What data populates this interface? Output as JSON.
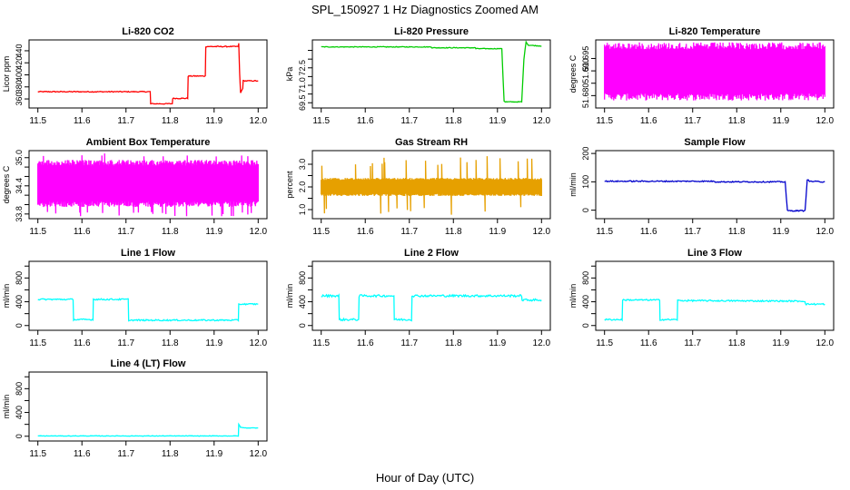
{
  "figure": {
    "title": "SPL_150927  1 Hz Diagnostics Zoomed AM",
    "xlabel": "Hour of Day (UTC)"
  },
  "chart_data": [
    {
      "type": "line",
      "title": "Li-820 CO2",
      "ylabel": "Licor ppm",
      "color": "#ff0000",
      "xlim": [
        11.48,
        12.02
      ],
      "ylim": [
        345,
        458
      ],
      "xticks": [
        11.5,
        11.6,
        11.7,
        11.8,
        11.9,
        12.0
      ],
      "xtick_labels": [
        "11.5",
        "11.6",
        "11.7",
        "11.8",
        "11.9",
        "12.0"
      ],
      "yticks": [
        360,
        380,
        400,
        420,
        440
      ],
      "ytick_labels": [
        "360",
        "380",
        "400",
        "420",
        "440"
      ],
      "noise": 0.8,
      "x": [
        11.5,
        11.755,
        11.756,
        11.805,
        11.806,
        11.84,
        11.841,
        11.88,
        11.881,
        11.955,
        11.956,
        11.958,
        11.96,
        11.965,
        11.966,
        12.0
      ],
      "y": [
        372,
        372,
        352,
        352,
        361,
        361,
        398,
        398,
        447,
        447,
        452,
        402,
        370,
        378,
        390,
        390
      ]
    },
    {
      "type": "line",
      "title": "Li-820 Pressure",
      "ylabel": "kPa",
      "color": "#00cc00",
      "xlim": [
        11.48,
        12.02
      ],
      "ylim": [
        69.2,
        73.1
      ],
      "xticks": [
        11.5,
        11.6,
        11.7,
        11.8,
        11.9,
        12.0
      ],
      "xtick_labels": [
        "11.5",
        "11.6",
        "11.7",
        "11.8",
        "11.9",
        "12.0"
      ],
      "yticks": [
        69.5,
        70.0,
        70.5,
        71.0,
        71.5,
        72.0,
        72.5
      ],
      "ytick_labels": [
        "69.5",
        "",
        "71.0",
        "",
        "72.5",
        "",
        ""
      ],
      "noise": 0.02,
      "x": [
        11.5,
        11.75,
        11.751,
        11.85,
        11.851,
        11.91,
        11.915,
        11.918,
        11.955,
        11.96,
        11.965,
        11.97,
        12.0
      ],
      "y": [
        72.7,
        72.7,
        72.65,
        72.65,
        72.6,
        72.6,
        69.6,
        69.55,
        69.55,
        72.0,
        73.0,
        72.8,
        72.75
      ]
    },
    {
      "type": "line",
      "title": "Li-820 Temperature",
      "ylabel": "degrees C",
      "color": "#ff00ff",
      "xlim": [
        11.48,
        12.02
      ],
      "ylim": [
        51.675,
        51.7025
      ],
      "xticks": [
        11.5,
        11.6,
        11.7,
        11.8,
        11.9,
        12.0
      ],
      "xtick_labels": [
        "11.5",
        "11.6",
        "11.7",
        "11.8",
        "11.9",
        "12.0"
      ],
      "yticks": [
        51.68,
        51.685,
        51.69,
        51.695
      ],
      "ytick_labels": [
        "51.680",
        "",
        "51.690",
        "51.695"
      ],
      "oscillate": {
        "from": 11.5,
        "to": 12.0,
        "low": 51.678,
        "high": 51.7015,
        "steps": 240
      }
    },
    {
      "type": "line",
      "title": "Ambient Box Temperature",
      "ylabel": "degrees C",
      "color": "#ff00ff",
      "xlim": [
        11.48,
        12.02
      ],
      "ylim": [
        33.7,
        35.15
      ],
      "xticks": [
        11.5,
        11.6,
        11.7,
        11.8,
        11.9,
        12.0
      ],
      "xtick_labels": [
        "11.5",
        "11.6",
        "11.7",
        "11.8",
        "11.9",
        "12.0"
      ],
      "yticks": [
        33.8,
        34.0,
        34.2,
        34.4,
        34.6,
        34.8,
        35.0
      ],
      "ytick_labels": [
        "33.8",
        "",
        "",
        "34.4",
        "",
        "",
        "35.0"
      ],
      "oscillate": {
        "from": 11.5,
        "to": 12.0,
        "low": 33.95,
        "high": 34.95,
        "steps": 320,
        "spike_low": 33.75,
        "spike_high": 35.1
      }
    },
    {
      "type": "line",
      "title": "Gas Stream RH",
      "ylabel": "percent",
      "color": "#e6a000",
      "xlim": [
        11.48,
        12.02
      ],
      "ylim": [
        0.6,
        3.6
      ],
      "xticks": [
        11.5,
        11.6,
        11.7,
        11.8,
        11.9,
        12.0
      ],
      "xtick_labels": [
        "11.5",
        "11.6",
        "11.7",
        "11.8",
        "11.9",
        "12.0"
      ],
      "yticks": [
        1.0,
        1.5,
        2.0,
        2.5,
        3.0
      ],
      "ytick_labels": [
        "1.0",
        "",
        "2.0",
        "",
        "3.0"
      ],
      "oscillate": {
        "from": 11.5,
        "to": 12.0,
        "low": 1.6,
        "high": 2.4,
        "steps": 340,
        "spike_low": 0.7,
        "spike_high": 3.4
      }
    },
    {
      "type": "line",
      "title": "Sample Flow",
      "ylabel": "ml/min",
      "color": "#0000cc",
      "xlim": [
        11.48,
        12.02
      ],
      "ylim": [
        -30,
        210
      ],
      "xticks": [
        11.5,
        11.6,
        11.7,
        11.8,
        11.9,
        12.0
      ],
      "xtick_labels": [
        "11.5",
        "11.6",
        "11.7",
        "11.8",
        "11.9",
        "12.0"
      ],
      "yticks": [
        0,
        100,
        200
      ],
      "ytick_labels": [
        "0",
        "100",
        "200"
      ],
      "noise": 2,
      "x": [
        11.5,
        11.75,
        11.751,
        11.91,
        11.915,
        11.955,
        11.96,
        11.965,
        12.0
      ],
      "y": [
        102,
        102,
        100,
        100,
        -2,
        -2,
        108,
        102,
        100
      ]
    },
    {
      "type": "line",
      "title": "Line 1 Flow",
      "ylabel": "ml/min",
      "color": "#00ffff",
      "xlim": [
        11.48,
        12.02
      ],
      "ylim": [
        -80,
        1080
      ],
      "xticks": [
        11.5,
        11.6,
        11.7,
        11.8,
        11.9,
        12.0
      ],
      "xtick_labels": [
        "11.5",
        "11.6",
        "11.7",
        "11.8",
        "11.9",
        "12.0"
      ],
      "yticks": [
        0,
        200,
        400,
        600,
        800,
        1000
      ],
      "ytick_labels": [
        "0",
        "",
        "400",
        "",
        "800",
        ""
      ],
      "noise": 12,
      "x": [
        11.5,
        11.58,
        11.581,
        11.625,
        11.626,
        11.705,
        11.706,
        11.955,
        11.956,
        12.0
      ],
      "y": [
        440,
        440,
        100,
        100,
        440,
        440,
        90,
        90,
        360,
        360
      ]
    },
    {
      "type": "line",
      "title": "Line 2 Flow",
      "ylabel": "ml/min",
      "color": "#00ffff",
      "xlim": [
        11.48,
        12.02
      ],
      "ylim": [
        -80,
        1080
      ],
      "xticks": [
        11.5,
        11.6,
        11.7,
        11.8,
        11.9,
        12.0
      ],
      "xtick_labels": [
        "11.5",
        "11.6",
        "11.7",
        "11.8",
        "11.9",
        "12.0"
      ],
      "yticks": [
        0,
        200,
        400,
        600,
        800,
        1000
      ],
      "ytick_labels": [
        "0",
        "",
        "400",
        "",
        "800",
        ""
      ],
      "noise": 18,
      "x": [
        11.5,
        11.54,
        11.541,
        11.585,
        11.586,
        11.665,
        11.666,
        11.705,
        11.706,
        11.955,
        11.956,
        12.0
      ],
      "y": [
        500,
        500,
        100,
        100,
        500,
        500,
        100,
        100,
        500,
        500,
        430,
        430
      ]
    },
    {
      "type": "line",
      "title": "Line 3 Flow",
      "ylabel": "ml/min",
      "color": "#00ffff",
      "xlim": [
        11.48,
        12.02
      ],
      "ylim": [
        -80,
        1080
      ],
      "xticks": [
        11.5,
        11.6,
        11.7,
        11.8,
        11.9,
        12.0
      ],
      "xtick_labels": [
        "11.5",
        "11.6",
        "11.7",
        "11.8",
        "11.9",
        "12.0"
      ],
      "yticks": [
        0,
        200,
        400,
        600,
        800,
        1000
      ],
      "ytick_labels": [
        "0",
        "",
        "400",
        "",
        "800",
        ""
      ],
      "noise": 12,
      "x": [
        11.5,
        11.54,
        11.541,
        11.625,
        11.626,
        11.665,
        11.666,
        11.955,
        11.956,
        12.0
      ],
      "y": [
        100,
        100,
        430,
        430,
        100,
        100,
        420,
        410,
        360,
        360
      ]
    },
    {
      "type": "line",
      "title": "Line 4 (LT) Flow",
      "ylabel": "ml/min",
      "color": "#00ffff",
      "xlim": [
        11.48,
        12.02
      ],
      "ylim": [
        -80,
        1080
      ],
      "xticks": [
        11.5,
        11.6,
        11.7,
        11.8,
        11.9,
        12.0
      ],
      "xtick_labels": [
        "11.5",
        "11.6",
        "11.7",
        "11.8",
        "11.9",
        "12.0"
      ],
      "yticks": [
        0,
        200,
        400,
        600,
        800,
        1000
      ],
      "ytick_labels": [
        "0",
        "",
        "400",
        "",
        "800",
        ""
      ],
      "noise": 4,
      "x": [
        11.5,
        11.955,
        11.956,
        11.96,
        11.97,
        12.0
      ],
      "y": [
        5,
        5,
        200,
        150,
        140,
        140
      ]
    }
  ]
}
